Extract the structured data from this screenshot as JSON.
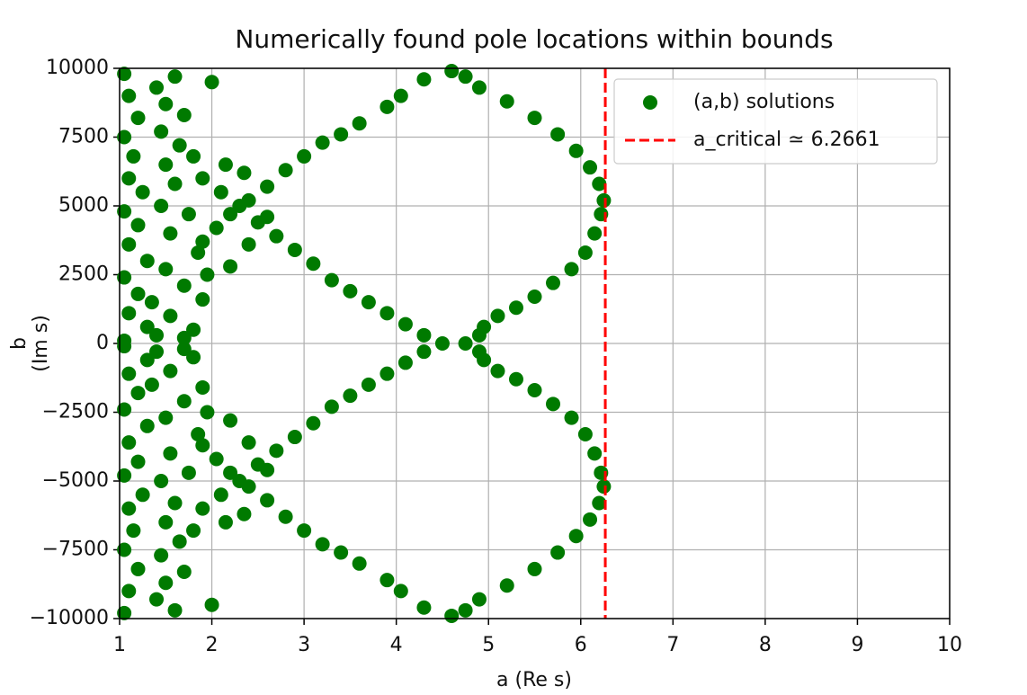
{
  "chart_data": {
    "type": "scatter",
    "title": "Numerically found pole locations within bounds",
    "xlabel": "a (Re s)",
    "ylabel": [
      "b",
      "(Im s)"
    ],
    "xlim": [
      1,
      10
    ],
    "xticks": [
      1,
      2,
      3,
      4,
      5,
      6,
      7,
      8,
      9,
      10
    ],
    "ylim": [
      -10000,
      10000
    ],
    "yticks": [
      {
        "value": -10000,
        "label": "−10000"
      },
      {
        "value": -7500,
        "label": "−7500"
      },
      {
        "value": -5000,
        "label": "−5000"
      },
      {
        "value": -2500,
        "label": "−2500"
      },
      0,
      2500,
      5000,
      7500,
      10000
    ],
    "grid": true,
    "legend": "upper right",
    "series": [
      {
        "name": "(a,b) solutions",
        "color": "#007a00",
        "x": [
          4.9,
          4.95,
          5.1,
          5.3,
          5.5,
          5.7,
          5.9,
          6.05,
          6.15,
          6.22,
          6.25,
          6.2,
          6.1,
          5.95,
          5.75,
          5.5,
          5.2,
          4.9,
          4.75,
          4.6,
          4.3,
          4.05,
          3.9,
          3.6,
          3.4,
          3.2,
          3.0,
          2.8,
          2.6,
          2.4,
          2.2,
          2.05,
          1.9,
          4.3,
          4.1,
          3.9,
          3.7,
          3.5,
          3.3,
          3.1,
          2.9,
          2.7,
          2.5,
          2.3,
          2.1,
          1.9,
          1.05,
          1.1,
          1.2,
          1.05,
          1.15,
          1.1,
          1.25,
          1.05,
          1.2,
          1.1,
          1.3,
          1.05,
          1.2,
          1.1,
          1.3,
          1.05,
          1.4,
          1.5,
          1.6,
          1.7,
          1.45,
          1.65,
          1.5,
          1.8,
          1.6,
          1.45,
          1.75,
          1.55,
          1.85,
          1.5,
          1.7,
          1.9,
          1.55,
          1.8,
          1.4,
          2.0,
          1.95,
          2.2,
          2.4,
          2.6,
          2.15,
          2.35,
          1.7,
          1.35,
          4.9,
          4.95,
          5.1,
          5.3,
          5.5,
          5.7,
          5.9,
          6.05,
          6.15,
          6.22,
          6.25,
          6.2,
          6.1,
          5.95,
          5.75,
          5.5,
          5.2,
          4.9,
          4.75,
          4.6,
          4.3,
          4.05,
          3.9,
          3.6,
          3.4,
          3.2,
          3.0,
          2.8,
          2.6,
          2.4,
          2.2,
          2.05,
          1.9,
          4.3,
          4.1,
          3.9,
          3.7,
          3.5,
          3.3,
          3.1,
          2.9,
          2.7,
          2.5,
          2.3,
          2.1,
          1.9,
          1.05,
          1.1,
          1.2,
          1.05,
          1.15,
          1.1,
          1.25,
          1.05,
          1.2,
          1.1,
          1.3,
          1.05,
          1.2,
          1.1,
          1.3,
          1.05,
          1.4,
          1.5,
          1.6,
          1.7,
          1.45,
          1.65,
          1.5,
          1.8,
          1.6,
          1.45,
          1.75,
          1.55,
          1.85,
          1.5,
          1.7,
          1.9,
          1.55,
          1.8,
          1.4,
          2.0,
          1.95,
          2.2,
          2.4,
          2.6,
          2.15,
          2.35,
          1.7,
          1.35,
          4.75,
          4.5
        ],
        "values": [
          300,
          600,
          1000,
          1300,
          1700,
          2200,
          2700,
          3300,
          4000,
          4700,
          5200,
          5800,
          6400,
          7000,
          7600,
          8200,
          8800,
          9300,
          9700,
          9900,
          9600,
          9000,
          8600,
          8000,
          7600,
          7300,
          6800,
          6300,
          5700,
          5200,
          4700,
          4200,
          3700,
          300,
          700,
          1100,
          1500,
          1900,
          2300,
          2900,
          3400,
          3900,
          4400,
          5000,
          5500,
          6000,
          9800,
          9000,
          8200,
          7500,
          6800,
          6000,
          5500,
          4800,
          4300,
          3600,
          3000,
          2400,
          1800,
          1100,
          600,
          100,
          9300,
          8700,
          9700,
          8300,
          7700,
          7200,
          6500,
          6800,
          5800,
          5000,
          4700,
          4000,
          3300,
          2700,
          2100,
          1600,
          1000,
          500,
          300,
          9500,
          2500,
          2800,
          3600,
          4600,
          6500,
          6200,
          200,
          1500,
          -300,
          -600,
          -1000,
          -1300,
          -1700,
          -2200,
          -2700,
          -3300,
          -4000,
          -4700,
          -5200,
          -5800,
          -6400,
          -7000,
          -7600,
          -8200,
          -8800,
          -9300,
          -9700,
          -9900,
          -9600,
          -9000,
          -8600,
          -8000,
          -7600,
          -7300,
          -6800,
          -6300,
          -5700,
          -5200,
          -4700,
          -4200,
          -3700,
          -300,
          -700,
          -1100,
          -1500,
          -1900,
          -2300,
          -2900,
          -3400,
          -3900,
          -4400,
          -5000,
          -5500,
          -6000,
          -9800,
          -9000,
          -8200,
          -7500,
          -6800,
          -6000,
          -5500,
          -4800,
          -4300,
          -3600,
          -3000,
          -2400,
          -1800,
          -1100,
          -600,
          -100,
          -9300,
          -8700,
          -9700,
          -8300,
          -7700,
          -7200,
          -6500,
          -6800,
          -5800,
          -5000,
          -4700,
          -4000,
          -3300,
          -2700,
          -2100,
          -1600,
          -1000,
          -500,
          -300,
          -9500,
          -2500,
          -2800,
          -3600,
          -4600,
          -6500,
          -6200,
          -200,
          -1500,
          0,
          0
        ]
      }
    ],
    "vline": {
      "name": "a_critical ≃ 6.2661",
      "value": 6.2661,
      "color": "#ff0000"
    }
  }
}
